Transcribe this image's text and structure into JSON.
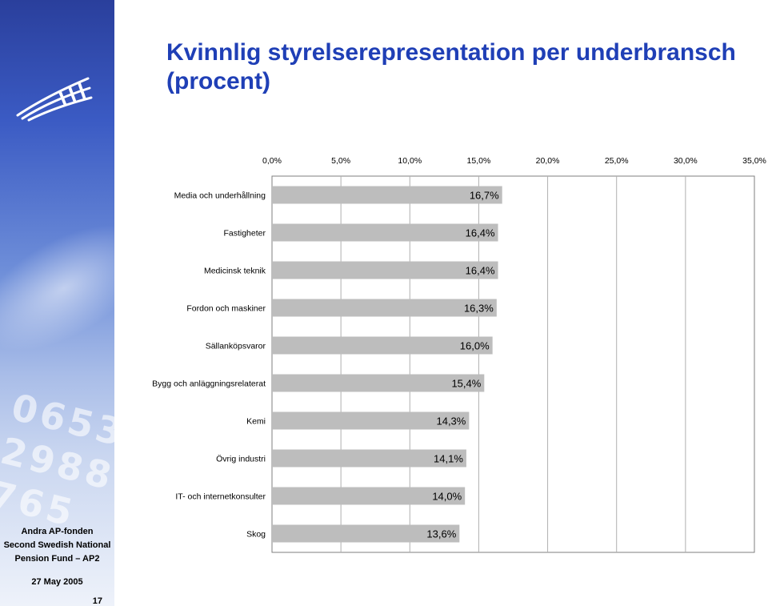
{
  "title": "Kvinnlig styrelserepresentation per underbransch (procent)",
  "footer": {
    "org_line1": "Andra AP-fonden",
    "org_line2": "Second Swedish National",
    "org_line3": "Pension Fund – AP2",
    "date": "27 May 2005",
    "page_number": "17"
  },
  "colors": {
    "title": "#1f3fb6",
    "bar": "#bdbdbd",
    "gridline": "#b0b0b0"
  },
  "chart_data": {
    "type": "bar",
    "orientation": "horizontal",
    "categories": [
      "Media och underhållning",
      "Fastigheter",
      "Medicinsk teknik",
      "Fordon och maskiner",
      "Sällanköpsvaror",
      "Bygg och anläggningsrelaterat",
      "Kemi",
      "Övrig industri",
      "IT- och internetkonsulter",
      "Skog"
    ],
    "values": [
      16.7,
      16.4,
      16.4,
      16.3,
      16.0,
      15.4,
      14.3,
      14.1,
      14.0,
      13.6
    ],
    "value_labels": [
      "16,7%",
      "16,4%",
      "16,4%",
      "16,3%",
      "16,0%",
      "15,4%",
      "14,3%",
      "14,1%",
      "14,0%",
      "13,6%"
    ],
    "xlim": [
      0,
      35
    ],
    "xticks": [
      0,
      5,
      10,
      15,
      20,
      25,
      30,
      35
    ],
    "xtick_labels": [
      "0,0%",
      "5,0%",
      "10,0%",
      "15,0%",
      "20,0%",
      "25,0%",
      "30,0%",
      "35,0%"
    ],
    "xaxis_position": "top",
    "grid": true,
    "legend": false
  }
}
